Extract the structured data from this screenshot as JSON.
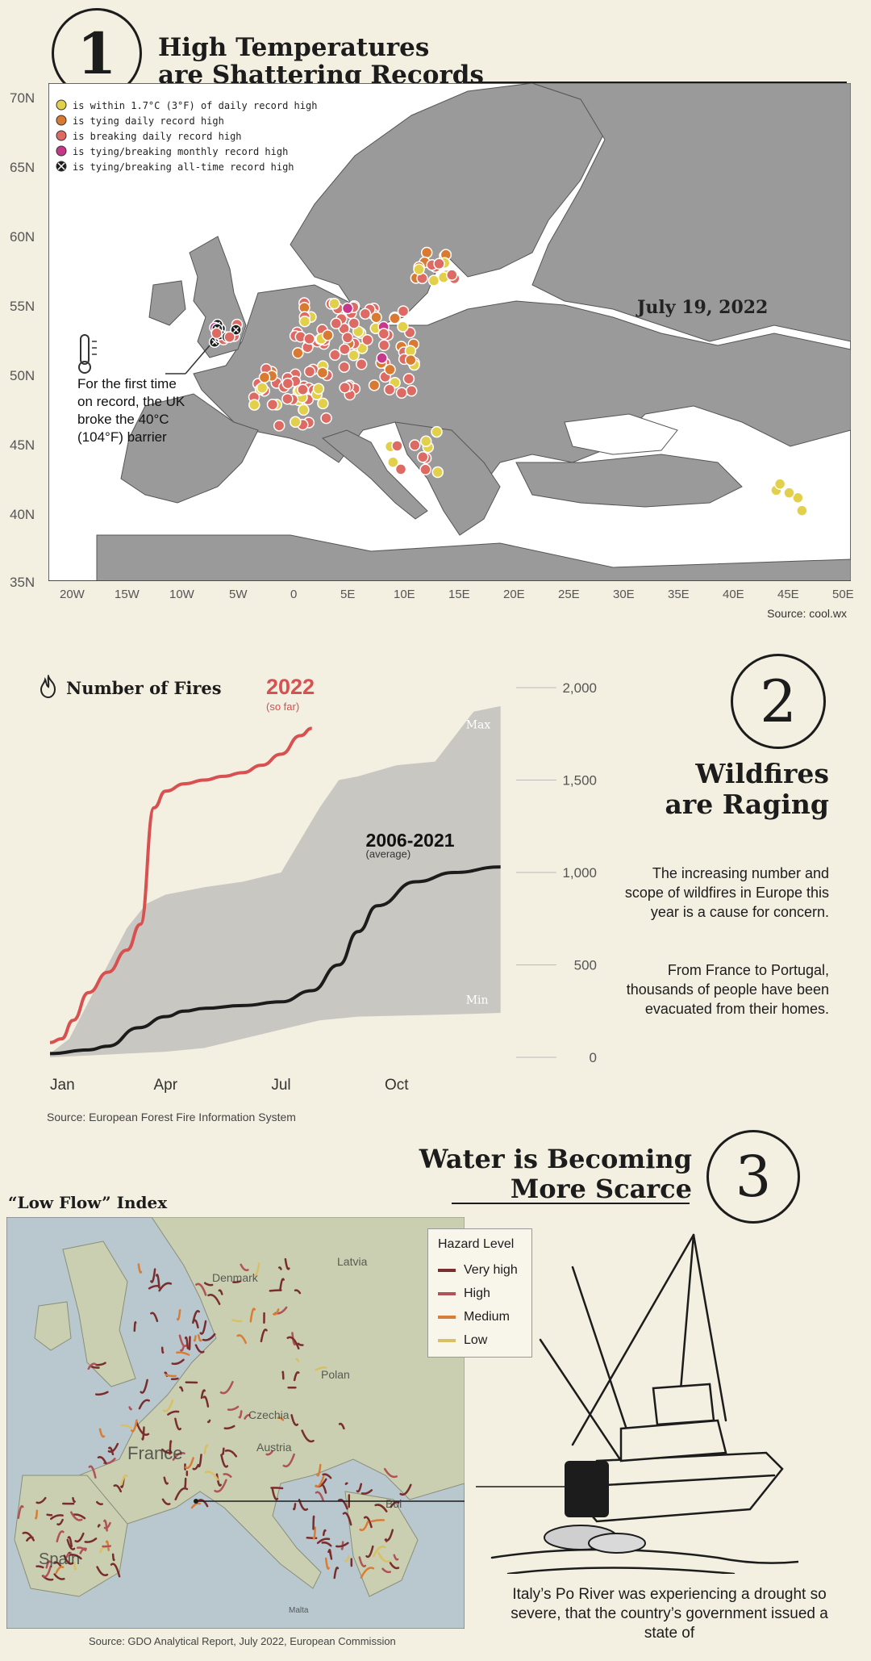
{
  "section1": {
    "number": "1",
    "title_line1": "High Temperatures",
    "title_line2": "are Shattering Records",
    "legend": [
      {
        "label": "is within 1.7°C (3°F) of daily record high",
        "color": "#e3d04a"
      },
      {
        "label": "is tying daily record high",
        "color": "#d97a33"
      },
      {
        "label": "is breaking daily record high",
        "color": "#de6a64"
      },
      {
        "label": "is tying/breaking monthly record high",
        "color": "#c7388a"
      },
      {
        "label": "is tying/breaking all-time record high",
        "color": "#1c1c1c"
      }
    ],
    "date": "July 19, 2022",
    "callout": [
      "For the first time",
      "on record, the UK",
      "broke the 40°C",
      "(104°F) barrier"
    ],
    "lat_ticks": [
      "70N",
      "65N",
      "60N",
      "55N",
      "50N",
      "45N",
      "40N",
      "35N"
    ],
    "lon_ticks": [
      "20W",
      "15W",
      "10W",
      "5W",
      "0",
      "5E",
      "10E",
      "15E",
      "20E",
      "25E",
      "30E",
      "35E",
      "40E",
      "45E",
      "50E"
    ],
    "source": "Source: cool.wx"
  },
  "section2": {
    "number": "2",
    "title_line1": "Wildfires",
    "title_line2": "are Raging",
    "paragraph1": "The increasing number and scope of wildfires in Europe this year is a cause for concern.",
    "paragraph2": "From France to Portugal, thousands of people have been evacuated from their homes.",
    "source": "Source: European Forest Fire Information System"
  },
  "chart_data": {
    "type": "line",
    "title": "Number of Fires",
    "x_ticks": [
      "Jan",
      "Apr",
      "Jul",
      "Oct"
    ],
    "y_ticks": [
      "0",
      "500",
      "1,000",
      "1,500",
      "2,000"
    ],
    "ylim": [
      0,
      2000
    ],
    "xlim": [
      0,
      12
    ],
    "series": [
      {
        "name": "2022",
        "sublabel": "(so far)",
        "color": "#d85050",
        "x": [
          0,
          0.3,
          0.6,
          1.0,
          1.5,
          2.0,
          2.35,
          2.7,
          3.0,
          3.5,
          4.0,
          4.5,
          5.0,
          5.5,
          6.0,
          6.5,
          6.8
        ],
        "y": [
          80,
          100,
          200,
          350,
          460,
          580,
          720,
          1350,
          1440,
          1480,
          1500,
          1520,
          1540,
          1580,
          1640,
          1740,
          1780
        ]
      },
      {
        "name": "2006-2021",
        "sublabel": "(average)",
        "color": "#1c1c1c",
        "x": [
          0,
          1,
          1.5,
          2.3,
          3,
          3.5,
          4,
          5,
          6,
          6.8,
          7.5,
          8,
          8.5,
          9.5,
          10.5,
          11.7
        ],
        "y": [
          20,
          40,
          60,
          160,
          220,
          250,
          265,
          280,
          300,
          360,
          500,
          680,
          820,
          950,
          1000,
          1030
        ]
      }
    ],
    "range_band": {
      "max_label": "Max",
      "min_label": "Min",
      "color": "#c9c7c1",
      "x": [
        0,
        0.5,
        1.0,
        1.5,
        2,
        2.5,
        3,
        4,
        5,
        6,
        7,
        7.5,
        8,
        9,
        10,
        11,
        11.7
      ],
      "upper": [
        20,
        100,
        300,
        500,
        700,
        830,
        880,
        920,
        950,
        1000,
        1350,
        1500,
        1520,
        1580,
        1600,
        1870,
        1900
      ],
      "lower": [
        0,
        5,
        10,
        15,
        20,
        25,
        30,
        50,
        100,
        150,
        200,
        210,
        220,
        225,
        230,
        235,
        240
      ]
    }
  },
  "section3": {
    "number": "3",
    "title_line1": "Water is Becoming",
    "title_line2": "More Scarce",
    "map_title": "“Low Flow” Index",
    "legend_title": "Hazard Level",
    "legend": [
      {
        "label": "Very high",
        "color": "#7a2d2d"
      },
      {
        "label": "High",
        "color": "#b05257"
      },
      {
        "label": "Medium",
        "color": "#d97d34"
      },
      {
        "label": "Low",
        "color": "#d9c065"
      }
    ],
    "map_labels": [
      "France",
      "Spain",
      "Czechia",
      "Austria",
      "Polan",
      "Denmark",
      "Latvia",
      "Bul",
      "Malta"
    ],
    "source": "Source: GDO Analytical Report, July 2022, European Commission",
    "po_text": "Italy’s Po River was experiencing a drought so severe, that the country’s government issued a state of"
  }
}
